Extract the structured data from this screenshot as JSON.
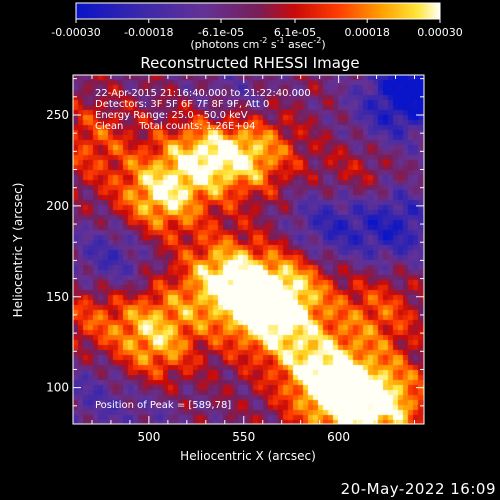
{
  "colorbar": {
    "ticks": [
      "-0.00030",
      "-0.00018",
      "-6.1e-05",
      "6.1e-05",
      "0.00018",
      "0.00030"
    ],
    "unit_label": "(photons cm",
    "unit_parts": [
      "(photons cm",
      "-2",
      " s",
      "-1",
      " asec",
      "-2",
      ")"
    ],
    "range": [
      -0.0003,
      0.0003
    ]
  },
  "chart_data": {
    "type": "heatmap",
    "title": "Reconstructed RHESSI Image",
    "xlabel": "Heliocentric X (arcsec)",
    "ylabel": "Heliocentric Y (arcsec)",
    "xlim": [
      460,
      645
    ],
    "ylim": [
      80,
      272
    ],
    "x_ticks": [
      500,
      550,
      600
    ],
    "y_ticks": [
      100,
      150,
      200,
      250
    ],
    "peak_position": [
      589,
      78
    ],
    "hotspots": [
      {
        "x": 505,
        "y": 205,
        "value": 0.00028
      },
      {
        "x": 530,
        "y": 228,
        "value": 0.00026
      },
      {
        "x": 555,
        "y": 230,
        "value": 0.00024
      },
      {
        "x": 540,
        "y": 160,
        "value": 0.00029
      },
      {
        "x": 560,
        "y": 140,
        "value": 0.00026
      },
      {
        "x": 575,
        "y": 155,
        "value": 0.00022
      },
      {
        "x": 505,
        "y": 135,
        "value": 0.0002
      },
      {
        "x": 500,
        "y": 110,
        "value": 0.00018
      },
      {
        "x": 600,
        "y": 95,
        "value": 0.0003
      },
      {
        "x": 625,
        "y": 92,
        "value": 0.00027
      },
      {
        "x": 585,
        "y": 115,
        "value": 0.0002
      },
      {
        "x": 620,
        "y": 140,
        "value": 0.00016
      },
      {
        "x": 470,
        "y": 140,
        "value": 0.00015
      },
      {
        "x": 470,
        "y": 235,
        "value": 0.00014
      },
      {
        "x": 610,
        "y": 215,
        "value": 0.00012
      }
    ],
    "coldspots": [
      {
        "x": 480,
        "y": 170,
        "value": -0.00018
      },
      {
        "x": 595,
        "y": 190,
        "value": -0.0002
      },
      {
        "x": 630,
        "y": 190,
        "value": -0.00022
      },
      {
        "x": 625,
        "y": 250,
        "value": -0.00016
      },
      {
        "x": 500,
        "y": 95,
        "value": -0.00014
      },
      {
        "x": 470,
        "y": 100,
        "value": -0.00012
      },
      {
        "x": 545,
        "y": 255,
        "value": -0.00012
      },
      {
        "x": 645,
        "y": 270,
        "value": -0.0003
      }
    ]
  },
  "annotations": {
    "line1": "22-Apr-2015 21:16:40.000 to 21:22:40.000",
    "line2": "Detectors: 3F 5F 6F 7F 8F 9F, Att 0",
    "line3": "Energy Range: 25.0 - 50.0 keV",
    "line4": "Clean     Total counts: 1.26E+04",
    "peak": "Position of Peak = [589,78]"
  },
  "timestamp": "20-May-2022 16:09"
}
